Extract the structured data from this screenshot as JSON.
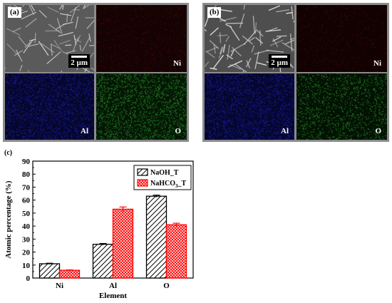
{
  "panels": [
    {
      "letter": "(a)",
      "scale": "2 µm",
      "labels": [
        "Ni",
        "Al",
        "O"
      ]
    },
    {
      "letter": "(b)",
      "scale": "2 µm",
      "labels": [
        "Ni",
        "Al",
        "O"
      ]
    }
  ],
  "chart_letter": "(c)",
  "colors": {
    "ni": "#3a0808",
    "al": "#15188a",
    "o": "#1d6f1f",
    "naoh": "#000000",
    "nahco3": "#ff0000"
  },
  "chart_data": {
    "type": "bar",
    "categories": [
      "Ni",
      "Al",
      "O"
    ],
    "series": [
      {
        "name": "NaOH_T",
        "values": [
          11,
          26,
          63
        ],
        "errors": [
          0.4,
          0.6,
          0.8
        ],
        "color": "#000000",
        "pattern": "diagonal-hatch"
      },
      {
        "name": "NaHCO3_T",
        "values": [
          6,
          53,
          41
        ],
        "errors": [
          0.3,
          1.7,
          1.2
        ],
        "color": "#ff0000",
        "pattern": "crosshatch"
      }
    ],
    "xlabel": "Element",
    "ylabel": "Atomic percentage (%)",
    "ylim": [
      0,
      90
    ],
    "yticks": [
      "0",
      "10",
      "20",
      "30",
      "40",
      "50",
      "60",
      "70",
      "80",
      "90"
    ],
    "legend": [
      "NaOH_T",
      "NaHCO3_T"
    ],
    "legend_position": "top-right"
  }
}
